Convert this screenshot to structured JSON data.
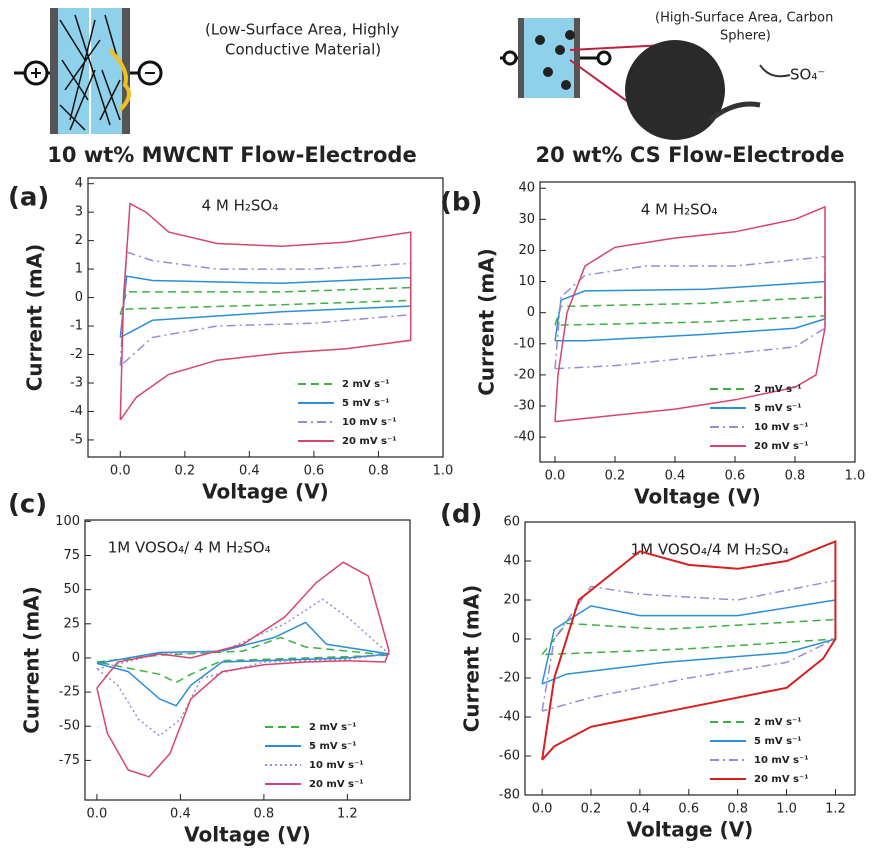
{
  "figure": {
    "left_caption": [
      "(Low-Surface Area, Highly",
      "Conductive Material)"
    ],
    "right_caption": [
      "(High-Surface Area, Carbon",
      "Sphere)"
    ],
    "ion": "SO₄⁻",
    "left_heading": "10 wt% MWCNT Flow-Electrode",
    "right_heading": "20 wt% CS Flow-Electrode"
  },
  "chart_data": [
    {
      "type": "line",
      "panel_label": "(a)",
      "annotation": "4 M H₂SO₄",
      "xlabel": "Voltage (V)",
      "ylabel": "Current (mA)",
      "xlim": [
        -0.1,
        1.0
      ],
      "ylim": [
        -5.6,
        4.2
      ],
      "xticks": [
        {
          "value": 0,
          "label": "0.0"
        },
        0.2,
        0.4,
        0.6,
        0.8,
        {
          "value": 1,
          "label": "1.0"
        }
      ],
      "yticks": [
        -5,
        -4,
        -3,
        -2,
        -1,
        0,
        1,
        2,
        3,
        4
      ],
      "legend": "lower right",
      "series": [
        {
          "name": "2 mV s⁻¹",
          "color": "#3cb043",
          "dash": "dashed",
          "x": [
            0,
            0.02,
            0.5,
            0.9,
            0.9,
            0.5,
            0.02,
            0
          ],
          "values": [
            -0.6,
            0.2,
            0.2,
            0.35,
            -0.1,
            -0.25,
            -0.4,
            -0.6
          ]
        },
        {
          "name": "5 mV s⁻¹",
          "color": "#2c8fd6",
          "dash": "solid",
          "x": [
            0,
            0.02,
            0.1,
            0.5,
            0.9,
            0.9,
            0.5,
            0.1,
            0
          ],
          "values": [
            -1.4,
            0.75,
            0.6,
            0.5,
            0.7,
            -0.3,
            -0.5,
            -0.8,
            -1.4
          ]
        },
        {
          "name": "10 mV s⁻¹",
          "color": "#9a8ad8",
          "dash": "dashdot",
          "x": [
            0,
            0.02,
            0.1,
            0.3,
            0.6,
            0.9,
            0.9,
            0.6,
            0.3,
            0.1,
            0
          ],
          "values": [
            -2.4,
            1.6,
            1.3,
            1.0,
            1.0,
            1.2,
            -0.6,
            -0.9,
            -1.0,
            -1.4,
            -2.4
          ]
        },
        {
          "name": "20 mV s⁻¹",
          "color": "#d6456b",
          "dash": "solid",
          "x": [
            0,
            0.01,
            0.03,
            0.08,
            0.15,
            0.3,
            0.5,
            0.7,
            0.9,
            0.9,
            0.7,
            0.5,
            0.3,
            0.15,
            0.05,
            0
          ],
          "values": [
            -4.3,
            0,
            3.3,
            3.0,
            2.3,
            1.9,
            1.8,
            1.95,
            2.3,
            -1.5,
            -1.8,
            -1.95,
            -2.2,
            -2.7,
            -3.5,
            -4.3
          ]
        }
      ]
    },
    {
      "type": "line",
      "panel_label": "(b)",
      "annotation": "4 M H₂SO₄",
      "xlabel": "Voltage (V)",
      "ylabel": "Current (mA)",
      "xlim": [
        -0.05,
        1.0
      ],
      "ylim": [
        -48,
        42
      ],
      "xticks": [
        {
          "value": 0,
          "label": "0.0"
        },
        0.2,
        0.4,
        0.6,
        0.8,
        {
          "value": 1,
          "label": "1.0"
        }
      ],
      "yticks": [
        -40,
        -30,
        -20,
        -10,
        0,
        10,
        20,
        30,
        40
      ],
      "legend": "lower right",
      "series": [
        {
          "name": "2 mV s⁻¹",
          "color": "#3cb043",
          "dash": "dashed",
          "x": [
            0,
            0.02,
            0.5,
            0.9,
            0.9,
            0.5,
            0.02,
            0
          ],
          "values": [
            -4,
            2,
            3,
            5,
            -1,
            -3,
            -4,
            -4
          ]
        },
        {
          "name": "5 mV s⁻¹",
          "color": "#2c8fd6",
          "dash": "solid",
          "x": [
            0,
            0.02,
            0.1,
            0.5,
            0.9,
            0.9,
            0.8,
            0.5,
            0.1,
            0
          ],
          "values": [
            -9,
            4,
            7,
            7.5,
            10,
            -2,
            -5,
            -7,
            -9,
            -9
          ]
        },
        {
          "name": "10 mV s⁻¹",
          "color": "#9a8ad8",
          "dash": "dashdot",
          "x": [
            0,
            0.02,
            0.1,
            0.3,
            0.6,
            0.9,
            0.9,
            0.8,
            0.5,
            0.2,
            0
          ],
          "values": [
            -18,
            5,
            12,
            15,
            15,
            18,
            -5,
            -11,
            -14,
            -17,
            -18
          ]
        },
        {
          "name": "20 mV s⁻¹",
          "color": "#d6456b",
          "dash": "solid",
          "x": [
            0,
            0.01,
            0.04,
            0.1,
            0.2,
            0.4,
            0.6,
            0.8,
            0.9,
            0.9,
            0.87,
            0.8,
            0.6,
            0.4,
            0.2,
            0
          ],
          "values": [
            -35,
            -20,
            0,
            15,
            21,
            24,
            26,
            30,
            34,
            -5,
            -20,
            -24,
            -28,
            -31,
            -33,
            -35
          ]
        }
      ]
    },
    {
      "type": "line",
      "panel_label": "(c)",
      "annotation": "1M VOSO₄/  4 M H₂SO₄",
      "xlabel": "Voltage (V)",
      "ylabel": "Current (mA)",
      "xlim": [
        -0.057,
        1.5
      ],
      "ylim": [
        -104,
        101
      ],
      "xticks": [
        {
          "value": 0,
          "label": "0.0"
        },
        0.4,
        0.8,
        1.2
      ],
      "yticks": [
        -75,
        -50,
        -25,
        0,
        25,
        50,
        75,
        100
      ],
      "legend": "lower right",
      "series": [
        {
          "name": "2 mV s⁻¹",
          "color": "#3cb043",
          "dash": "dashed",
          "x": [
            0,
            0.3,
            0.7,
            0.88,
            1.0,
            1.4,
            1.0,
            0.6,
            0.45,
            0.38,
            0.3,
            0
          ],
          "values": [
            -3,
            2,
            5,
            15,
            8,
            2,
            0,
            -2,
            -12,
            -18,
            -12,
            -3
          ]
        },
        {
          "name": "5 mV s⁻¹",
          "color": "#2c8fd6",
          "dash": "solid",
          "x": [
            0,
            0.3,
            0.6,
            0.85,
            1.0,
            1.1,
            1.4,
            1.2,
            0.6,
            0.45,
            0.38,
            0.3,
            0.15,
            0
          ],
          "values": [
            -4,
            4,
            5,
            15,
            26,
            10,
            3,
            0,
            -3,
            -20,
            -35,
            -30,
            -10,
            -4
          ]
        },
        {
          "name": "10 mV s⁻¹",
          "color": "#9a8ad8",
          "dash": "dotted",
          "x": [
            0,
            0.3,
            0.6,
            0.9,
            1.08,
            1.2,
            1.4,
            1.2,
            0.8,
            0.5,
            0.4,
            0.3,
            0.2,
            0.1,
            0
          ],
          "values": [
            -8,
            3,
            5,
            25,
            43,
            30,
            3,
            -1,
            -3,
            -15,
            -45,
            -57,
            -45,
            -20,
            -8
          ]
        },
        {
          "name": "20 mV s⁻¹",
          "color": "#d6456b",
          "dash": "solid",
          "x": [
            0,
            0.1,
            0.3,
            0.45,
            0.7,
            0.9,
            1.05,
            1.18,
            1.3,
            1.4,
            1.38,
            1.2,
            1.0,
            0.8,
            0.6,
            0.45,
            0.35,
            0.25,
            0.15,
            0.05,
            0
          ],
          "values": [
            -22,
            -3,
            3,
            0,
            10,
            30,
            55,
            70,
            60,
            5,
            -3,
            -2,
            -3,
            -5,
            -10,
            -30,
            -70,
            -87,
            -82,
            -55,
            -22
          ]
        }
      ]
    },
    {
      "type": "line",
      "panel_label": "(d)",
      "annotation": "1M VOSO₄/4 M H₂SO₄",
      "xlabel": "Voltage (V)",
      "ylabel": "Current (mA)",
      "xlim": [
        -0.07,
        1.28
      ],
      "ylim": [
        -80,
        60
      ],
      "xticks": [
        {
          "value": 0,
          "label": "0.0"
        },
        0.2,
        0.4,
        0.6,
        0.8,
        {
          "value": 1,
          "label": "1.0"
        },
        1.2
      ],
      "yticks": [
        -80,
        -60,
        -40,
        -20,
        0,
        20,
        40,
        60
      ],
      "legend": "lower right",
      "series": [
        {
          "name": "2 mV s⁻¹",
          "color": "#3cb043",
          "dash": "dashed",
          "x": [
            0,
            0.1,
            0.5,
            1.2,
            1.2,
            0.6,
            0
          ],
          "values": [
            -8,
            8,
            5,
            10,
            0,
            -5,
            -8
          ]
        },
        {
          "name": "5 mV s⁻¹",
          "color": "#2c8fd6",
          "dash": "solid",
          "x": [
            0,
            0.05,
            0.2,
            0.4,
            0.8,
            1.2,
            1.2,
            1.0,
            0.5,
            0.1,
            0
          ],
          "values": [
            -23,
            5,
            17,
            12,
            12,
            20,
            0,
            -7,
            -12,
            -18,
            -23
          ]
        },
        {
          "name": "10 mV s⁻¹",
          "color": "#9a8ad8",
          "dash": "dashdot",
          "x": [
            0,
            0.05,
            0.2,
            0.4,
            0.8,
            1.2,
            1.2,
            1.0,
            0.6,
            0.2,
            0
          ],
          "values": [
            -37,
            0,
            27,
            23,
            20,
            30,
            0,
            -12,
            -20,
            -30,
            -37
          ]
        },
        {
          "name": "20 mV s⁻¹",
          "color": "#d62020",
          "dash": "solid",
          "x": [
            0,
            0.05,
            0.15,
            0.4,
            0.6,
            0.8,
            1.0,
            1.2,
            1.2,
            1.15,
            1.0,
            0.6,
            0.2,
            0.05,
            0
          ],
          "values": [
            -62,
            -20,
            20,
            45,
            38,
            36,
            40,
            50,
            0,
            -10,
            -25,
            -35,
            -45,
            -55,
            -62
          ]
        }
      ]
    }
  ]
}
